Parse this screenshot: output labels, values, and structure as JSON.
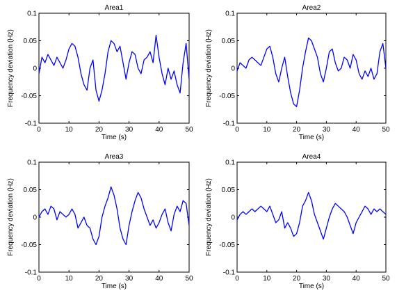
{
  "chart_data": [
    {
      "type": "line",
      "title": "Area1",
      "xlabel": "Time (s)",
      "ylabel": "Frequency deviation (Hz)",
      "xlim": [
        0,
        50
      ],
      "ylim": [
        -0.1,
        0.1
      ],
      "xticks": [
        0,
        10,
        20,
        30,
        40,
        50
      ],
      "yticks": [
        -0.1,
        -0.05,
        0,
        0.05,
        0.1
      ],
      "ytick_labels": [
        "-0.1",
        "-0.05",
        "0",
        "0.05",
        "0.1"
      ],
      "grid": false,
      "line_color": "#0000ff",
      "series": [
        {
          "x": [
            0,
            1,
            2,
            3,
            4,
            5,
            6,
            7,
            8,
            9,
            10,
            11,
            12,
            13,
            14,
            15,
            16,
            17,
            18,
            19,
            20,
            21,
            22,
            23,
            24,
            25,
            26,
            27,
            28,
            29,
            30,
            31,
            32,
            33,
            34,
            35,
            36,
            37,
            38,
            39,
            40,
            41,
            42,
            43,
            44,
            45,
            46,
            47,
            48,
            49,
            50
          ],
          "y": [
            -0.01,
            0.02,
            0.01,
            0.025,
            0.015,
            0.005,
            0.02,
            0.01,
            0.0,
            0.015,
            0.035,
            0.045,
            0.04,
            0.02,
            -0.01,
            -0.03,
            -0.04,
            0.0,
            0.015,
            -0.04,
            -0.06,
            -0.04,
            -0.01,
            0.03,
            0.05,
            0.045,
            0.03,
            0.04,
            0.01,
            -0.02,
            0.01,
            0.03,
            0.025,
            0.0,
            -0.01,
            0.015,
            0.02,
            0.03,
            0.01,
            0.06,
            0.02,
            -0.01,
            -0.03,
            0.0,
            -0.02,
            -0.005,
            -0.03,
            -0.045,
            0.01,
            0.045,
            -0.02
          ]
        }
      ]
    },
    {
      "type": "line",
      "title": "Area2",
      "xlabel": "Time (s)",
      "ylabel": "Frequency deviation (Hz)",
      "xlim": [
        0,
        50
      ],
      "ylim": [
        -0.1,
        0.1
      ],
      "xticks": [
        0,
        10,
        20,
        30,
        40,
        50
      ],
      "yticks": [
        -0.1,
        -0.05,
        0,
        0.05,
        0.1
      ],
      "ytick_labels": [
        "-0.1",
        "-0.05",
        "0",
        "0.05",
        "0.1"
      ],
      "grid": false,
      "line_color": "#0000ff",
      "series": [
        {
          "x": [
            0,
            1,
            2,
            3,
            4,
            5,
            6,
            7,
            8,
            9,
            10,
            11,
            12,
            13,
            14,
            15,
            16,
            17,
            18,
            19,
            20,
            21,
            22,
            23,
            24,
            25,
            26,
            27,
            28,
            29,
            30,
            31,
            32,
            33,
            34,
            35,
            36,
            37,
            38,
            39,
            40,
            41,
            42,
            43,
            44,
            45,
            46,
            47,
            48,
            49,
            50
          ],
          "y": [
            -0.005,
            0.01,
            0.005,
            0.0,
            0.015,
            0.02,
            0.015,
            0.01,
            0.005,
            0.02,
            0.035,
            0.04,
            0.02,
            -0.01,
            -0.025,
            0.0,
            0.02,
            -0.015,
            -0.045,
            -0.065,
            -0.07,
            -0.04,
            0.0,
            0.03,
            0.055,
            0.05,
            0.035,
            0.02,
            -0.01,
            -0.025,
            0.0,
            0.03,
            0.035,
            0.01,
            -0.005,
            0.0,
            0.02,
            0.015,
            0.0,
            0.025,
            0.015,
            -0.01,
            -0.02,
            -0.005,
            -0.015,
            0.0,
            -0.02,
            -0.01,
            0.03,
            0.045,
            0.0
          ]
        }
      ]
    },
    {
      "type": "line",
      "title": "Area3",
      "xlabel": "Time (s)",
      "ylabel": "Frequency deviation (Hz)",
      "xlim": [
        0,
        50
      ],
      "ylim": [
        -0.1,
        0.1
      ],
      "xticks": [
        0,
        10,
        20,
        30,
        40,
        50
      ],
      "yticks": [
        -0.1,
        -0.05,
        0,
        0.05,
        0.1
      ],
      "ytick_labels": [
        "-0.1",
        "-0.05",
        "0",
        "0.05",
        "0.1"
      ],
      "grid": false,
      "line_color": "#0000ff",
      "series": [
        {
          "x": [
            0,
            1,
            2,
            3,
            4,
            5,
            6,
            7,
            8,
            9,
            10,
            11,
            12,
            13,
            14,
            15,
            16,
            17,
            18,
            19,
            20,
            21,
            22,
            23,
            24,
            25,
            26,
            27,
            28,
            29,
            30,
            31,
            32,
            33,
            34,
            35,
            36,
            37,
            38,
            39,
            40,
            41,
            42,
            43,
            44,
            45,
            46,
            47,
            48,
            49,
            50
          ],
          "y": [
            0.0,
            0.01,
            0.015,
            0.005,
            0.02,
            0.015,
            -0.005,
            0.01,
            0.005,
            0.0,
            0.005,
            0.015,
            0.005,
            -0.02,
            -0.01,
            0.0,
            -0.015,
            -0.02,
            -0.04,
            -0.05,
            -0.035,
            0.0,
            0.02,
            0.035,
            0.055,
            0.04,
            0.015,
            -0.02,
            -0.04,
            -0.05,
            -0.015,
            0.01,
            0.03,
            0.045,
            0.035,
            0.015,
            0.0,
            -0.015,
            -0.005,
            -0.02,
            -0.01,
            0.005,
            0.015,
            -0.01,
            -0.025,
            0.005,
            0.02,
            0.01,
            0.03,
            0.025,
            -0.015
          ]
        }
      ]
    },
    {
      "type": "line",
      "title": "Area4",
      "xlabel": "Time (s)",
      "ylabel": "Frequency deviation (Hz)",
      "xlim": [
        0,
        50
      ],
      "ylim": [
        -0.1,
        0.1
      ],
      "xticks": [
        0,
        10,
        20,
        30,
        40,
        50
      ],
      "yticks": [
        -0.1,
        -0.05,
        0,
        0.05,
        0.1
      ],
      "ytick_labels": [
        "-0.1",
        "-0.05",
        "0",
        "0.05",
        "0.1"
      ],
      "grid": false,
      "line_color": "#0000ff",
      "series": [
        {
          "x": [
            0,
            1,
            2,
            3,
            4,
            5,
            6,
            7,
            8,
            9,
            10,
            11,
            12,
            13,
            14,
            15,
            16,
            17,
            18,
            19,
            20,
            21,
            22,
            23,
            24,
            25,
            26,
            27,
            28,
            29,
            30,
            31,
            32,
            33,
            34,
            35,
            36,
            37,
            38,
            39,
            40,
            41,
            42,
            43,
            44,
            45,
            46,
            47,
            48,
            49,
            50
          ],
          "y": [
            -0.005,
            0.005,
            0.01,
            0.005,
            0.01,
            0.015,
            0.01,
            0.015,
            0.02,
            0.015,
            0.01,
            0.02,
            0.005,
            -0.01,
            -0.005,
            0.01,
            -0.02,
            -0.01,
            -0.02,
            -0.035,
            -0.03,
            -0.01,
            0.02,
            0.03,
            0.045,
            0.03,
            0.005,
            -0.01,
            -0.025,
            -0.04,
            -0.02,
            0.0,
            0.015,
            0.025,
            0.02,
            0.015,
            0.01,
            0.0,
            -0.015,
            -0.03,
            -0.01,
            0.0,
            0.01,
            0.02,
            0.015,
            0.005,
            0.015,
            0.01,
            0.015,
            0.01,
            0.005
          ]
        }
      ]
    }
  ]
}
